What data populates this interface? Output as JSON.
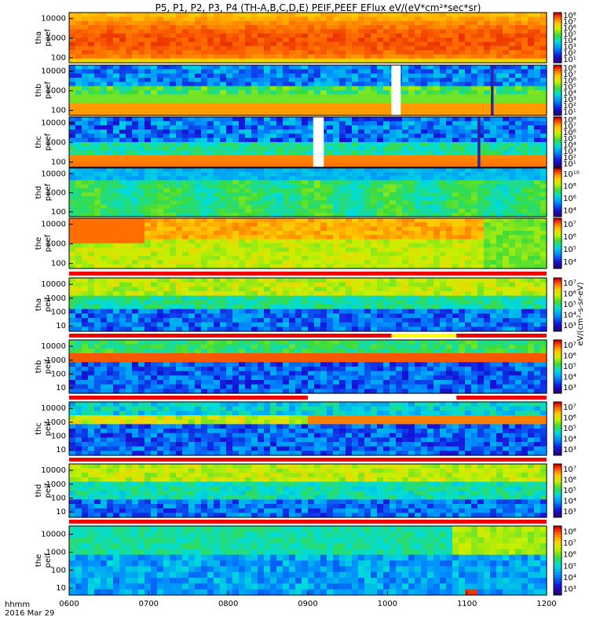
{
  "chart_data": {
    "type": "heatmap",
    "title": "P5, P1, P2, P3, P4 (TH-A,B,C,D,E) PEIF,PEEF EFlux eV/(eV*cm²*sec*sr)",
    "x_ticks": [
      "0600",
      "0700",
      "0800",
      "0900",
      "1000",
      "1100",
      "1200"
    ],
    "x_corner_label_1": "hhmm",
    "x_corner_label_2": "2016 Mar 29",
    "x_range": [
      "0600",
      "1200"
    ],
    "colorbar_label": "eV/(cm²-s-sr-eV)",
    "panels": [
      {
        "id": "tha-peef",
        "line1": "tha",
        "line2": "peef",
        "y_scale": "log",
        "y_ticks": [
          "10000",
          "1000",
          "100"
        ],
        "cb_ticks": [
          "10⁸",
          "10⁷",
          "10⁶",
          "10⁵",
          "10⁴",
          "10³",
          "10²",
          "10¹"
        ],
        "bar": false,
        "profile": "e_hot"
      },
      {
        "id": "thb-peef",
        "line1": "thb",
        "line2": "peef",
        "y_scale": "log",
        "y_ticks": [
          "10000",
          "1000",
          "100"
        ],
        "cb_ticks": [
          "10⁸",
          "10⁷",
          "10⁶",
          "10⁵",
          "10⁴",
          "10³",
          "10²",
          "10¹"
        ],
        "bar": false,
        "profile": "e_band",
        "gaps": [
          [
            "1003",
            "1010"
          ]
        ],
        "spikes": [
          [
            "1118",
            "1120"
          ]
        ]
      },
      {
        "id": "thc-peef",
        "line1": "thc",
        "line2": "peef",
        "y_scale": "log",
        "y_ticks": [
          "10000",
          "1000",
          "100"
        ],
        "cb_ticks": [
          "10⁸",
          "10⁷",
          "10⁶",
          "10⁵",
          "10⁴",
          "10³",
          "10²",
          "10¹"
        ],
        "bar": false,
        "profile": "e_low",
        "gaps": [
          [
            "0904",
            "0912"
          ]
        ],
        "spikes": [
          [
            "1108",
            "1110"
          ]
        ]
      },
      {
        "id": "thd-peef",
        "line1": "thd",
        "line2": "peef",
        "y_scale": "log",
        "y_ticks": [
          "10000",
          "1000",
          "100"
        ],
        "cb_ticks": [
          "10¹⁰",
          "10⁸",
          "10⁶",
          "10⁴"
        ],
        "bar": false,
        "profile": "e_green"
      },
      {
        "id": "the-peef",
        "line1": "the",
        "line2": "peef",
        "y_scale": "log",
        "y_ticks": [
          "10000",
          "1000",
          "100"
        ],
        "cb_ticks": [
          "10⁷",
          "10⁶",
          "10⁵",
          "10⁴"
        ],
        "bar": false,
        "profile": "e_the"
      },
      {
        "id": "tha-peif",
        "line1": "tha",
        "line2": "peif",
        "y_scale": "log",
        "y_ticks": [
          "10000",
          "1000",
          "100",
          "10"
        ],
        "cb_ticks": [
          "10⁷",
          "10⁶",
          "10⁵",
          "10⁴",
          "10³"
        ],
        "bar": true,
        "profile": "i_broad"
      },
      {
        "id": "thb-peif",
        "line1": "thb",
        "line2": "peif",
        "y_scale": "log",
        "y_ticks": [
          "10000",
          "1000",
          "100",
          "10"
        ],
        "cb_ticks": [
          "10⁷",
          "10⁶",
          "10⁵",
          "10⁴",
          "10³"
        ],
        "bar": true,
        "bar_yellow": [
          [
            "1003",
            "1052"
          ]
        ],
        "profile": "i_band"
      },
      {
        "id": "thc-peif",
        "line1": "thc",
        "line2": "peif",
        "y_scale": "log",
        "y_ticks": [
          "10000",
          "1000",
          "100",
          "10"
        ],
        "cb_ticks": [
          "10⁷",
          "10⁶",
          "10⁵",
          "10⁴",
          "10³"
        ],
        "bar": true,
        "bar_white": [
          [
            "0900",
            "1052"
          ]
        ],
        "profile": "i_thc"
      },
      {
        "id": "thd-peif",
        "line1": "thd",
        "line2": "peif",
        "y_scale": "log",
        "y_ticks": [
          "10000",
          "1000",
          "100",
          "10"
        ],
        "cb_ticks": [
          "10⁷",
          "10⁶",
          "10⁵",
          "10⁴",
          "10³"
        ],
        "bar": true,
        "profile": "i_broad2"
      },
      {
        "id": "the-peif",
        "line1": "the",
        "line2": "peif",
        "y_scale": "log",
        "y_ticks": [
          "10000",
          "1000",
          "100",
          "10"
        ],
        "cb_ticks": [
          "10⁸",
          "10⁷",
          "10⁶",
          "10⁵",
          "10⁴",
          "10³"
        ],
        "bar": true,
        "profile": "i_the"
      }
    ]
  }
}
